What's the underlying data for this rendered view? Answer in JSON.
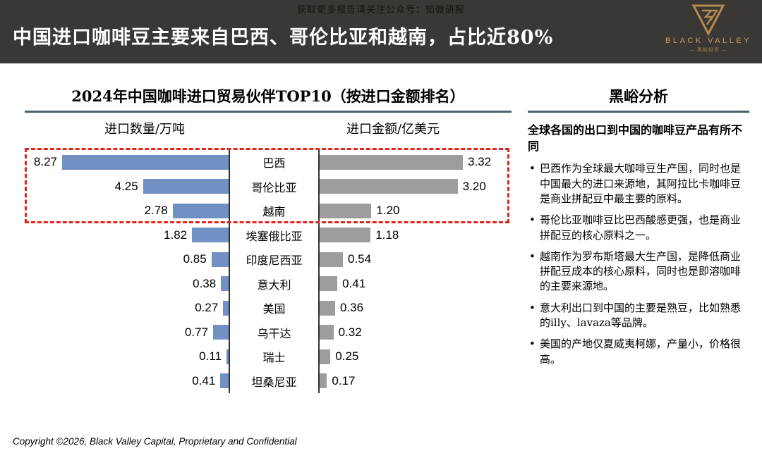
{
  "top_bar": {
    "text": "获取更多报告请关注公众号：知微研报"
  },
  "header": {
    "title": "中国进口咖啡豆主要来自巴西、哥伦比亚和越南，占比近80%",
    "logo": {
      "brand": "BLACK VALLEY",
      "subtitle": "— 黑峪投资 —",
      "icon": "bv-triangle-logo"
    }
  },
  "chart": {
    "title": "2024年中国咖啡进口贸易伙伴TOP10（按进口金额排名）",
    "left_header": "进口数量/万吨",
    "right_header": "进口金额/亿美元"
  },
  "chart_data": {
    "type": "bar",
    "variant": "butterfly",
    "title": "2024年中国咖啡进口贸易伙伴TOP10（按进口金额排名）",
    "categories": [
      "巴西",
      "哥伦比亚",
      "越南",
      "埃塞俄比亚",
      "印度尼西亚",
      "意大利",
      "美国",
      "乌干达",
      "瑞士",
      "坦桑尼亚"
    ],
    "series": [
      {
        "name": "进口数量/万吨",
        "unit": "万吨",
        "side": "left",
        "color": "#7191c4",
        "xlim": [
          0,
          8.5
        ],
        "values": [
          8.27,
          4.25,
          2.78,
          1.82,
          0.85,
          0.38,
          0.27,
          0.77,
          0.11,
          0.41
        ]
      },
      {
        "name": "进口金额/亿美元",
        "unit": "亿美元",
        "side": "right",
        "color": "#9d9d9d",
        "xlim": [
          0,
          3.4
        ],
        "values": [
          3.32,
          3.2,
          1.2,
          1.18,
          0.54,
          0.41,
          0.36,
          0.32,
          0.25,
          0.17
        ]
      }
    ],
    "value_labels": "outside-end, 2 decimals",
    "grid": false,
    "legend": "column headers above chart",
    "highlight_box": {
      "categories": [
        "巴西",
        "哥伦比亚",
        "越南"
      ],
      "style": "red dashed rectangle",
      "color": "#e3231d"
    }
  },
  "analysis": {
    "title": "黑峪分析",
    "intro": "全球各国的出口到中国的咖啡豆产品有所不同",
    "bullets": [
      "巴西作为全球最大咖啡豆生产国，同时也是中国最大的进口来源地，其阿拉比卡咖啡豆是商业拼配豆中最主要的原料。",
      "哥伦比亚咖啡豆比巴西酸感更强，也是商业拼配豆的核心原料之一。",
      "越南作为罗布斯塔最大生产国，是降低商业拼配豆成本的核心原料，同时也是即溶咖啡的主要来源地。",
      "意大利出口到中国的主要是熟豆，比如熟悉的illy、lavaza等品牌。",
      "美国的产地仅夏威夷柯娜，产量小，价格很高。"
    ]
  },
  "footer": {
    "text": "Copyright ©2026, Black Valley Capital, Proprietary and Confidential"
  },
  "colors": {
    "header_bg": "#3b3734",
    "accent_gold": "#c2a067",
    "rule_teal": "#46636b",
    "bar_blue": "#7191c4",
    "bar_gray": "#9d9d9d",
    "highlight_red": "#e3231d"
  }
}
